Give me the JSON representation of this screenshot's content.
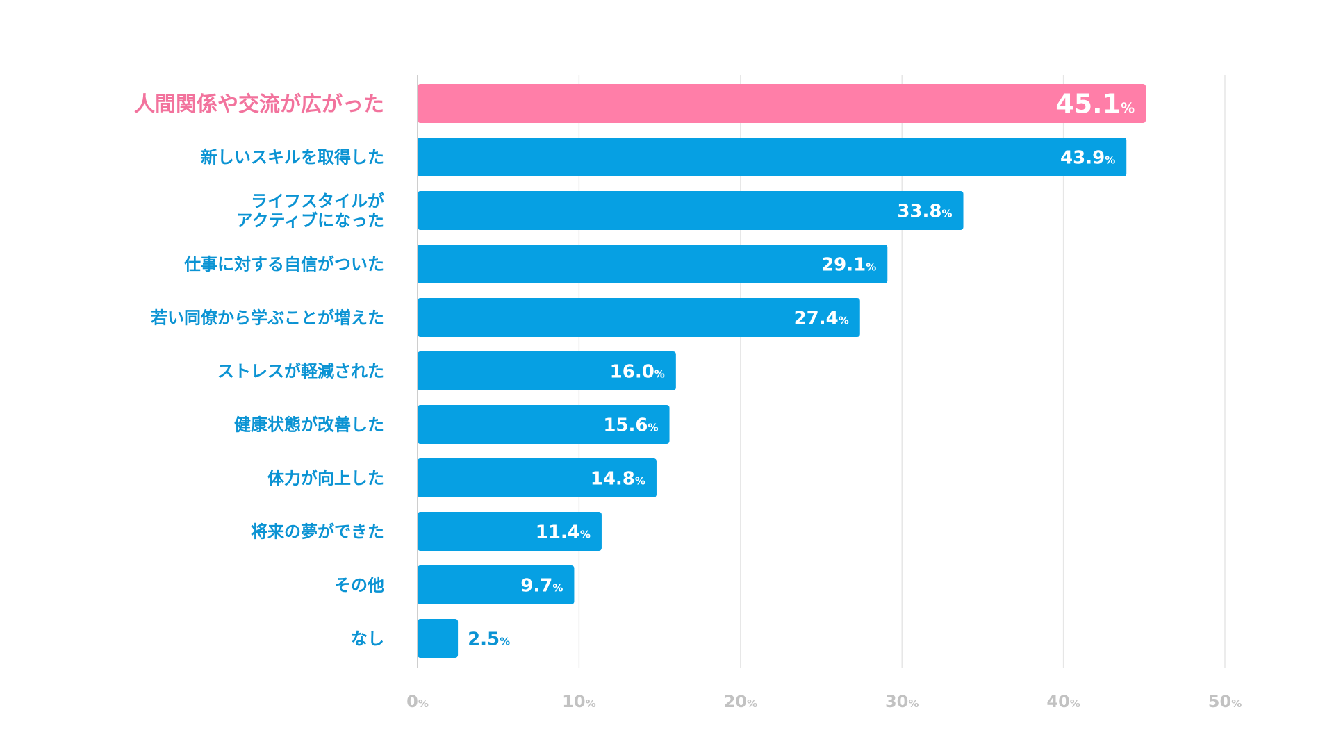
{
  "chart_data": {
    "type": "bar",
    "orientation": "horizontal",
    "categories": [
      "人間関係や交流が広がった",
      "新しいスキルを取得した",
      "ライフスタイルが\nアクティブになった",
      "仕事に対する自信がついた",
      "若い同僚から学ぶことが増えた",
      "ストレスが軽減された",
      "健康状態が改善した",
      "体力が向上した",
      "将来の夢ができた",
      "その他",
      "なし"
    ],
    "values": [
      45.1,
      43.9,
      33.8,
      29.1,
      27.4,
      16.0,
      15.6,
      14.8,
      11.4,
      9.7,
      2.5
    ],
    "value_labels": [
      "45.1",
      "43.9",
      "33.8",
      "29.1",
      "27.4",
      "16.0",
      "15.6",
      "14.8",
      "11.4",
      "9.7",
      "2.5"
    ],
    "value_unit": "%",
    "highlight_index": 0,
    "xlim": [
      0,
      50
    ],
    "x_ticks": [
      0,
      10,
      20,
      30,
      40,
      50
    ],
    "x_tick_labels": [
      "0",
      "10",
      "20",
      "30",
      "40",
      "50"
    ],
    "x_tick_unit": "%",
    "grid": true,
    "colors": {
      "bar": "#06A0E3",
      "highlight_bar": "#FF7EA8",
      "category_label": "#0B93D3",
      "highlight_label": "#F2739D",
      "value_label_inside": "#FFFFFF",
      "value_label_outside": "#0B93D3",
      "tick_label": "#C2C2C2",
      "grid": "#E6E6E6",
      "axis": "#BDBDBD"
    }
  }
}
